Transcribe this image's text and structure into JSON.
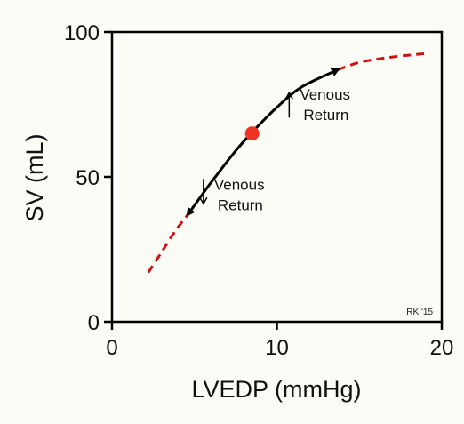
{
  "chart_data": {
    "type": "line",
    "title": "",
    "xlabel": "LVEDP (mmHg)",
    "ylabel": "SV (mL)",
    "xlim": [
      0,
      20
    ],
    "ylim": [
      0,
      100
    ],
    "x_ticks": [
      "0",
      "10",
      "20"
    ],
    "y_ticks": [
      "0",
      "50",
      "100"
    ],
    "grid": false,
    "legend": "none",
    "series": [
      {
        "style": "dashed",
        "color": "#cc1111",
        "x": [
          2.2,
          3.0,
          3.8,
          4.6
        ],
        "y": [
          17,
          24,
          31,
          37
        ]
      },
      {
        "style": "solid",
        "color": "#000000",
        "x": [
          4.6,
          6.0,
          7.5,
          8.6,
          10.0,
          11.5,
          13.7
        ],
        "y": [
          37,
          48,
          59,
          66,
          74,
          81,
          87
        ]
      },
      {
        "style": "dashed",
        "color": "#cc1111",
        "x": [
          13.7,
          15.0,
          16.5,
          18.0,
          19.0
        ],
        "y": [
          87,
          89.5,
          91,
          92,
          92.5
        ]
      }
    ],
    "point": {
      "x": 8.5,
      "y": 65,
      "color": "#ee3322"
    },
    "annotations": [
      {
        "arrow": "up",
        "line1": "Venous",
        "line2": "Return",
        "x": 11.5,
        "y": 76
      },
      {
        "arrow": "down",
        "line1": "Venous",
        "line2": "Return",
        "x": 6.3,
        "y": 45
      }
    ],
    "credit": "RK '15"
  }
}
